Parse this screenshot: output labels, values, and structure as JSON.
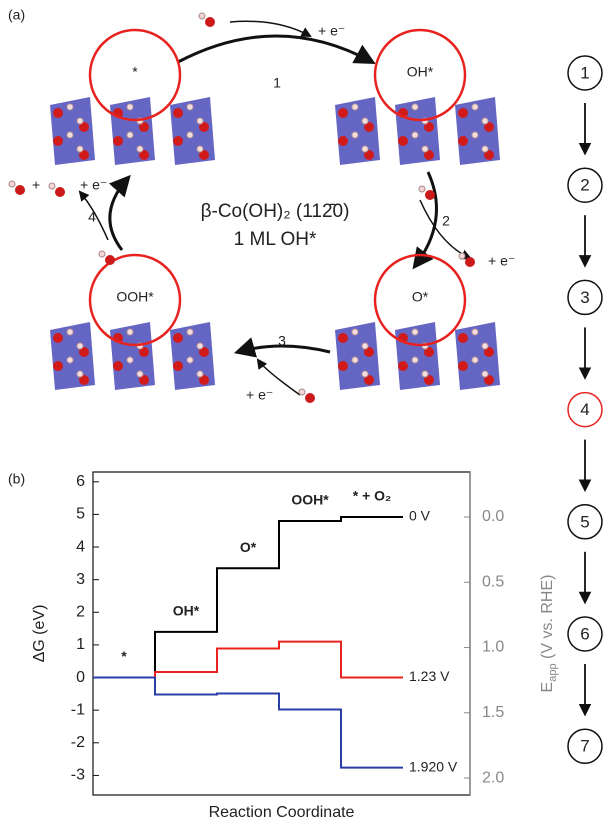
{
  "panel_a": {
    "label": "(a)",
    "states": [
      "*",
      "OH*",
      "O*",
      "OOH*"
    ],
    "surface": "β-Co(OH)₂ (112̄0)",
    "coverage": "1 ML OH*",
    "step_numbers": [
      "1",
      "2",
      "3",
      "4"
    ],
    "electrons": [
      "+ e⁻",
      "+ e⁻",
      "+ e⁻",
      "+ e⁻"
    ],
    "plus": "+"
  },
  "steps": [
    "1",
    "2",
    "3",
    "4",
    "5",
    "6",
    "7"
  ],
  "chart_data": {
    "type": "step-line",
    "label": "(b)",
    "x_label": "Reaction Coordinate",
    "y_label": "ΔG (eV)",
    "y2_label": "E",
    "y2_label_sub": "app",
    "y2_label_rest": " (V vs. RHE)",
    "categories": [
      "*",
      "OH*",
      "O*",
      "OOH*",
      "* + O₂"
    ],
    "series": [
      {
        "name": "0 V",
        "color": "#000000",
        "values": [
          0,
          1.4,
          3.35,
          4.8,
          4.92
        ]
      },
      {
        "name": "1.23 V",
        "color": "#e8231f",
        "values": [
          0,
          0.17,
          0.89,
          1.1,
          0
        ]
      },
      {
        "name": "1.920 V",
        "color": "#2b3ea5",
        "values": [
          0,
          -0.52,
          -0.49,
          -0.98,
          -2.76
        ]
      }
    ],
    "ylim": [
      -3.6,
      6.3
    ],
    "yticks": [
      -3,
      -2,
      -1,
      0,
      1,
      2,
      3,
      4,
      5,
      6
    ],
    "y2lim": [
      2.13,
      -0.345
    ],
    "y2ticks": [
      {
        "value": 0,
        "label": "0.0"
      },
      0.5,
      {
        "value": 1,
        "label": "1.0"
      },
      1.5,
      {
        "value": 2,
        "label": "2.0"
      }
    ]
  }
}
